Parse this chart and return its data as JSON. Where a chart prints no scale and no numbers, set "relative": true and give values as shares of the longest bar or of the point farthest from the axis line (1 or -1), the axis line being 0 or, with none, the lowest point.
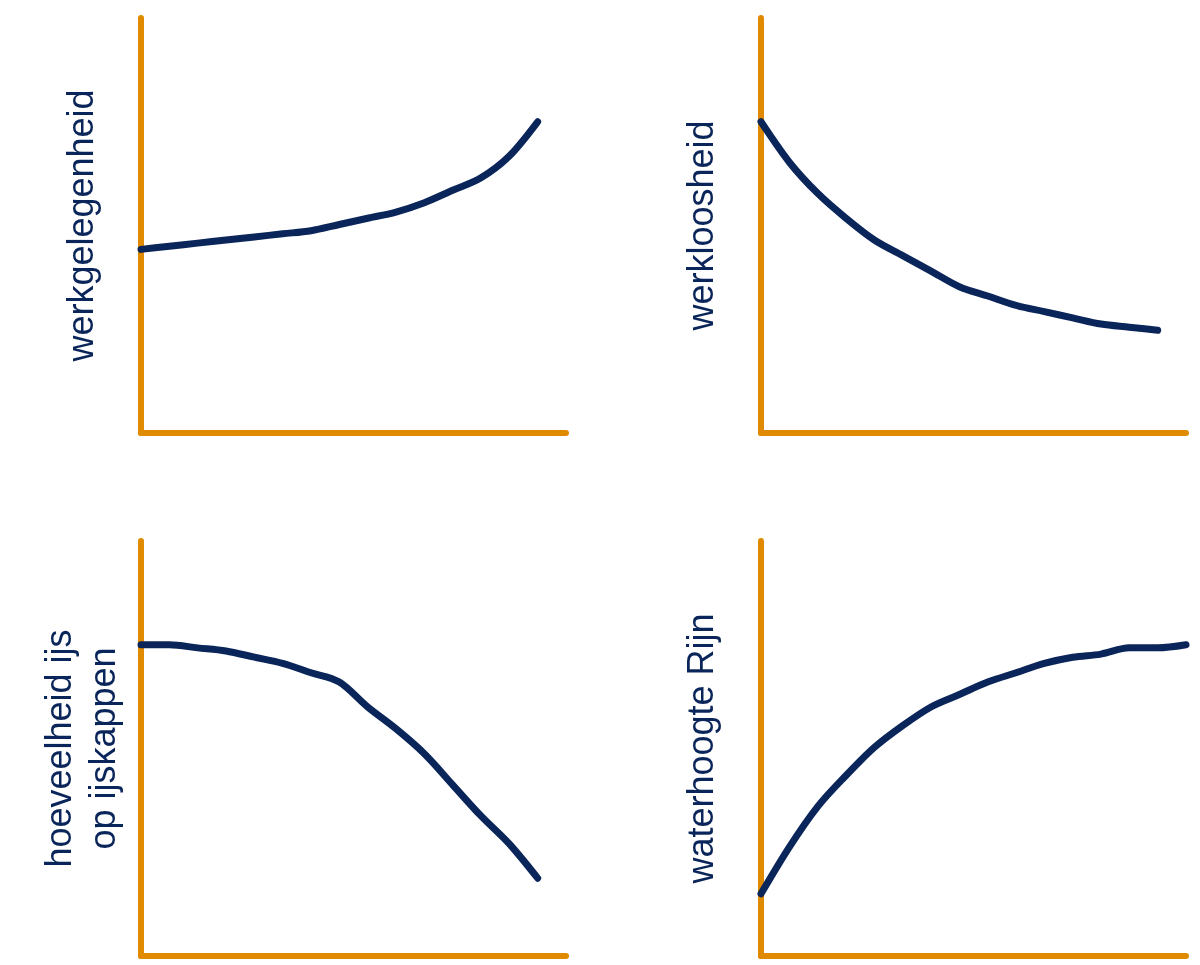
{
  "chart_data": [
    {
      "type": "line",
      "ylabel": "werkgelegenheid",
      "relative": true,
      "categories": [
        null,
        null,
        null,
        null,
        null,
        null,
        null,
        null,
        null,
        null,
        null,
        null,
        null,
        null,
        null,
        null
      ],
      "series": [
        {
          "color": "#0a2559",
          "values": [
            0.59,
            0.6,
            0.61,
            0.62,
            0.63,
            0.64,
            0.65,
            0.67,
            0.69,
            0.71,
            0.74,
            0.78,
            0.82,
            0.89,
            1,
            null
          ]
        }
      ]
    },
    {
      "type": "line",
      "ylabel": "werkloosheid",
      "relative": true,
      "categories": [
        null,
        null,
        null,
        null,
        null,
        null,
        null,
        null,
        null,
        null,
        null,
        null,
        null,
        null,
        null,
        null
      ],
      "series": [
        {
          "color": "#0a2559",
          "values": [
            1,
            0.87,
            0.77,
            0.69,
            0.62,
            0.57,
            0.52,
            0.47,
            0.44,
            0.41,
            0.39,
            0.37,
            0.35,
            0.34,
            0.33,
            null
          ]
        }
      ]
    },
    {
      "type": "line",
      "ylabel": "hoeveelheid ijs\nop ijskappen",
      "relative": true,
      "categories": [
        null,
        null,
        null,
        null,
        null,
        null,
        null,
        null,
        null,
        null,
        null,
        null,
        null,
        null,
        null,
        null
      ],
      "series": [
        {
          "color": "#0a2559",
          "values": [
            1,
            1,
            0.99,
            0.98,
            0.96,
            0.94,
            0.91,
            0.88,
            0.8,
            0.73,
            0.65,
            0.55,
            0.45,
            0.36,
            0.25,
            null
          ]
        }
      ]
    },
    {
      "type": "line",
      "ylabel": "waterhoogte Rijn",
      "relative": true,
      "categories": [
        null,
        null,
        null,
        null,
        null,
        null,
        null,
        null,
        null,
        null,
        null,
        null,
        null,
        null,
        null,
        null
      ],
      "series": [
        {
          "color": "#0a2559",
          "values": [
            0.2,
            0.35,
            0.48,
            0.58,
            0.67,
            0.74,
            0.8,
            0.84,
            0.88,
            0.91,
            0.94,
            0.96,
            0.97,
            0.99,
            0.99,
            1
          ]
        }
      ]
    }
  ]
}
